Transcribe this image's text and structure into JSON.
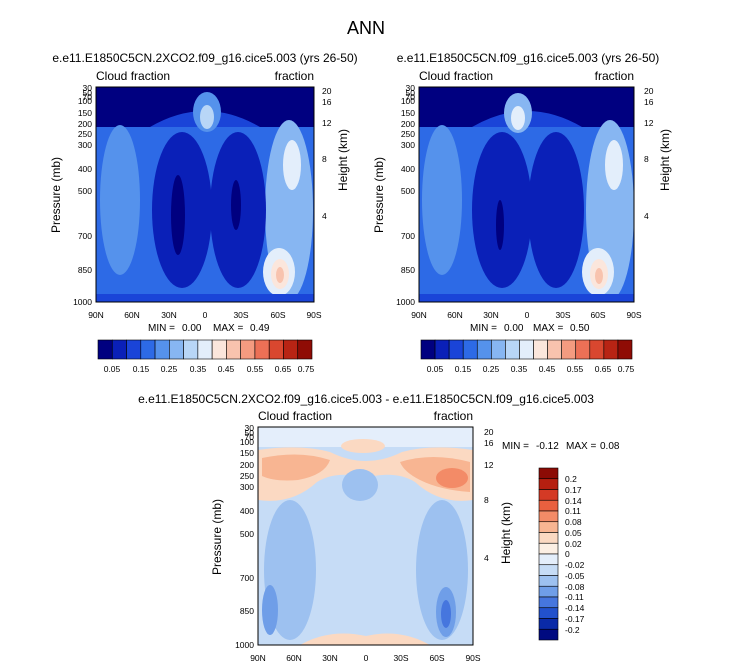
{
  "figure": {
    "title": "ANN"
  },
  "chart_data": [
    {
      "type": "heatmap",
      "title": "e.e11.E1850C5CN.2XCO2.f09_g16.cice5.003 (yrs 26-50)",
      "subtitle_left": "Cloud fraction",
      "subtitle_right": "fraction",
      "ylabel": "Pressure (mb)",
      "ylabel_right": "Height (km)",
      "x_ticks": [
        "90N",
        "60N",
        "30N",
        "0",
        "30S",
        "60S",
        "90S"
      ],
      "y_ticks": [
        "30",
        "50",
        "70",
        "100",
        "150",
        "200",
        "250",
        "300",
        "400",
        "500",
        "700",
        "850",
        "1000"
      ],
      "y_ticks_right": [
        "20",
        "16",
        "12",
        "8",
        "4"
      ],
      "stats": {
        "min_label": "MIN =",
        "min": "0.00",
        "max_label": "MAX =",
        "max": "0.49"
      },
      "colorbar_labels": [
        "0.05",
        "0.15",
        "0.25",
        "0.35",
        "0.45",
        "0.55",
        "0.65",
        "0.75"
      ]
    },
    {
      "type": "heatmap",
      "title": "e.e11.E1850C5CN.f09_g16.cice5.003 (yrs 26-50)",
      "subtitle_left": "Cloud fraction",
      "subtitle_right": "fraction",
      "ylabel": "Pressure (mb)",
      "ylabel_right": "Height (km)",
      "x_ticks": [
        "90N",
        "60N",
        "30N",
        "0",
        "30S",
        "60S",
        "90S"
      ],
      "y_ticks": [
        "30",
        "50",
        "70",
        "100",
        "150",
        "200",
        "250",
        "300",
        "400",
        "500",
        "700",
        "850",
        "1000"
      ],
      "y_ticks_right": [
        "20",
        "16",
        "12",
        "8",
        "4"
      ],
      "stats": {
        "min_label": "MIN =",
        "min": "0.00",
        "max_label": "MAX =",
        "max": "0.50"
      },
      "colorbar_labels": [
        "0.05",
        "0.15",
        "0.25",
        "0.35",
        "0.45",
        "0.55",
        "0.65",
        "0.75"
      ]
    },
    {
      "type": "heatmap",
      "title": "e.e11.E1850C5CN.2XCO2.f09_g16.cice5.003 - e.e11.E1850C5CN.f09_g16.cice5.003",
      "subtitle_left": "Cloud fraction",
      "subtitle_right": "fraction",
      "ylabel": "Pressure (mb)",
      "ylabel_right": "Height (km)",
      "x_ticks": [
        "90N",
        "60N",
        "30N",
        "0",
        "30S",
        "60S",
        "90S"
      ],
      "y_ticks": [
        "30",
        "50",
        "70",
        "100",
        "150",
        "200",
        "250",
        "300",
        "400",
        "500",
        "700",
        "850",
        "1000"
      ],
      "y_ticks_right": [
        "20",
        "16",
        "12",
        "8",
        "4"
      ],
      "stats": {
        "min_label": "MIN =",
        "min": "-0.12",
        "max_label": "MAX =",
        "max": "0.08"
      },
      "colorbar_labels": [
        "0.2",
        "0.17",
        "0.14",
        "0.11",
        "0.08",
        "0.05",
        "0.02",
        "0",
        "-0.02",
        "-0.05",
        "-0.08",
        "-0.11",
        "-0.14",
        "-0.17",
        "-0.2"
      ]
    }
  ],
  "palettes": {
    "abs": [
      "#000080",
      "#0a20b8",
      "#1a44d8",
      "#2d6ae6",
      "#5592ec",
      "#87b6f2",
      "#b8d6f7",
      "#e3eefb",
      "#fbe6dc",
      "#f8c3ae",
      "#f49b80",
      "#ec7056",
      "#d9472f",
      "#b82414",
      "#8f0c05"
    ],
    "diff": [
      "#8c0b05",
      "#b51f10",
      "#d43a25",
      "#e9603f",
      "#f38b67",
      "#f8b592",
      "#fbd9c2",
      "#fcefe4",
      "#e4eefb",
      "#c6dcf6",
      "#9dc1f0",
      "#6f9ee8",
      "#4676de",
      "#2251cc",
      "#0a2aa8",
      "#000a80"
    ]
  }
}
